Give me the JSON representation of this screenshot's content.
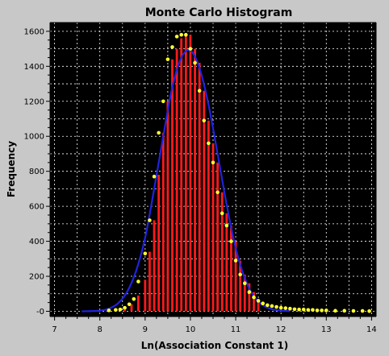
{
  "chart_data": {
    "type": "bar",
    "title": "Monte Carlo Histogram",
    "xlabel": "Ln(Association Constant 1)",
    "ylabel": "Frequency",
    "xlim": [
      6.9,
      14.1
    ],
    "ylim": [
      -30,
      1650
    ],
    "x_ticks": [
      7,
      8,
      9,
      10,
      11,
      12,
      13,
      14
    ],
    "y_ticks": [
      0,
      200,
      400,
      600,
      800,
      1000,
      1200,
      1400,
      1600
    ],
    "y_tick_labels": [
      "-0",
      "200",
      "400",
      "600",
      "800",
      "1000",
      "1200",
      "1400",
      "1600"
    ],
    "grid": true,
    "legend": "none",
    "colors": {
      "background": "#c8c8c8",
      "plot_area": "#000000",
      "grid": "#ffffff",
      "bars": "#ff1a1a",
      "points": "#ffff33",
      "fit_curve": "#2222dd"
    },
    "bar_width": 0.05,
    "series": [
      {
        "kind": "bars",
        "x": [
          8.55,
          8.7,
          8.85,
          9.0,
          9.1,
          9.2,
          9.3,
          9.4,
          9.5,
          9.6,
          9.7,
          9.8,
          9.9,
          10.0,
          10.1,
          10.2,
          10.3,
          10.4,
          10.5,
          10.6,
          10.7,
          10.8,
          10.9,
          11.0,
          11.1,
          11.2,
          11.3,
          11.4,
          11.5
        ],
        "values": [
          10,
          40,
          90,
          180,
          340,
          520,
          780,
          1020,
          1200,
          1440,
          1500,
          1560,
          1580,
          1580,
          1500,
          1420,
          1260,
          1090,
          960,
          850,
          680,
          560,
          490,
          400,
          290,
          210,
          160,
          110,
          60
        ]
      },
      {
        "kind": "points",
        "x": [
          8.2,
          8.35,
          8.45,
          8.55,
          8.65,
          8.75,
          8.85,
          9.0,
          9.1,
          9.2,
          9.3,
          9.4,
          9.5,
          9.6,
          9.7,
          9.8,
          9.9,
          10.0,
          10.1,
          10.2,
          10.3,
          10.4,
          10.5,
          10.6,
          10.7,
          10.8,
          10.9,
          11.0,
          11.1,
          11.2,
          11.3,
          11.4,
          11.5,
          11.6,
          11.7,
          11.8,
          11.9,
          12.0,
          12.1,
          12.2,
          12.3,
          12.4,
          12.5,
          12.6,
          12.7,
          12.8,
          12.9,
          13.0,
          13.2,
          13.4,
          13.6,
          13.8,
          13.95
        ],
        "values": [
          5,
          8,
          10,
          20,
          40,
          70,
          170,
          330,
          520,
          770,
          1020,
          1200,
          1440,
          1510,
          1570,
          1580,
          1580,
          1500,
          1420,
          1260,
          1090,
          960,
          850,
          680,
          560,
          490,
          400,
          290,
          210,
          160,
          110,
          80,
          60,
          45,
          35,
          30,
          25,
          20,
          18,
          15,
          12,
          10,
          10,
          8,
          8,
          5,
          5,
          5,
          3,
          3,
          2,
          2,
          1
        ]
      },
      {
        "kind": "line",
        "x": [
          7.6,
          7.8,
          8.0,
          8.2,
          8.4,
          8.6,
          8.8,
          9.0,
          9.2,
          9.4,
          9.6,
          9.8,
          10.0,
          10.2,
          10.4,
          10.6,
          10.8,
          11.0,
          11.2,
          11.4,
          11.6,
          11.8,
          12.0,
          12.2
        ],
        "values": [
          0,
          1,
          4,
          15,
          45,
          110,
          230,
          420,
          700,
          1000,
          1280,
          1450,
          1490,
          1390,
          1180,
          900,
          610,
          360,
          190,
          85,
          35,
          12,
          4,
          1
        ]
      }
    ]
  }
}
